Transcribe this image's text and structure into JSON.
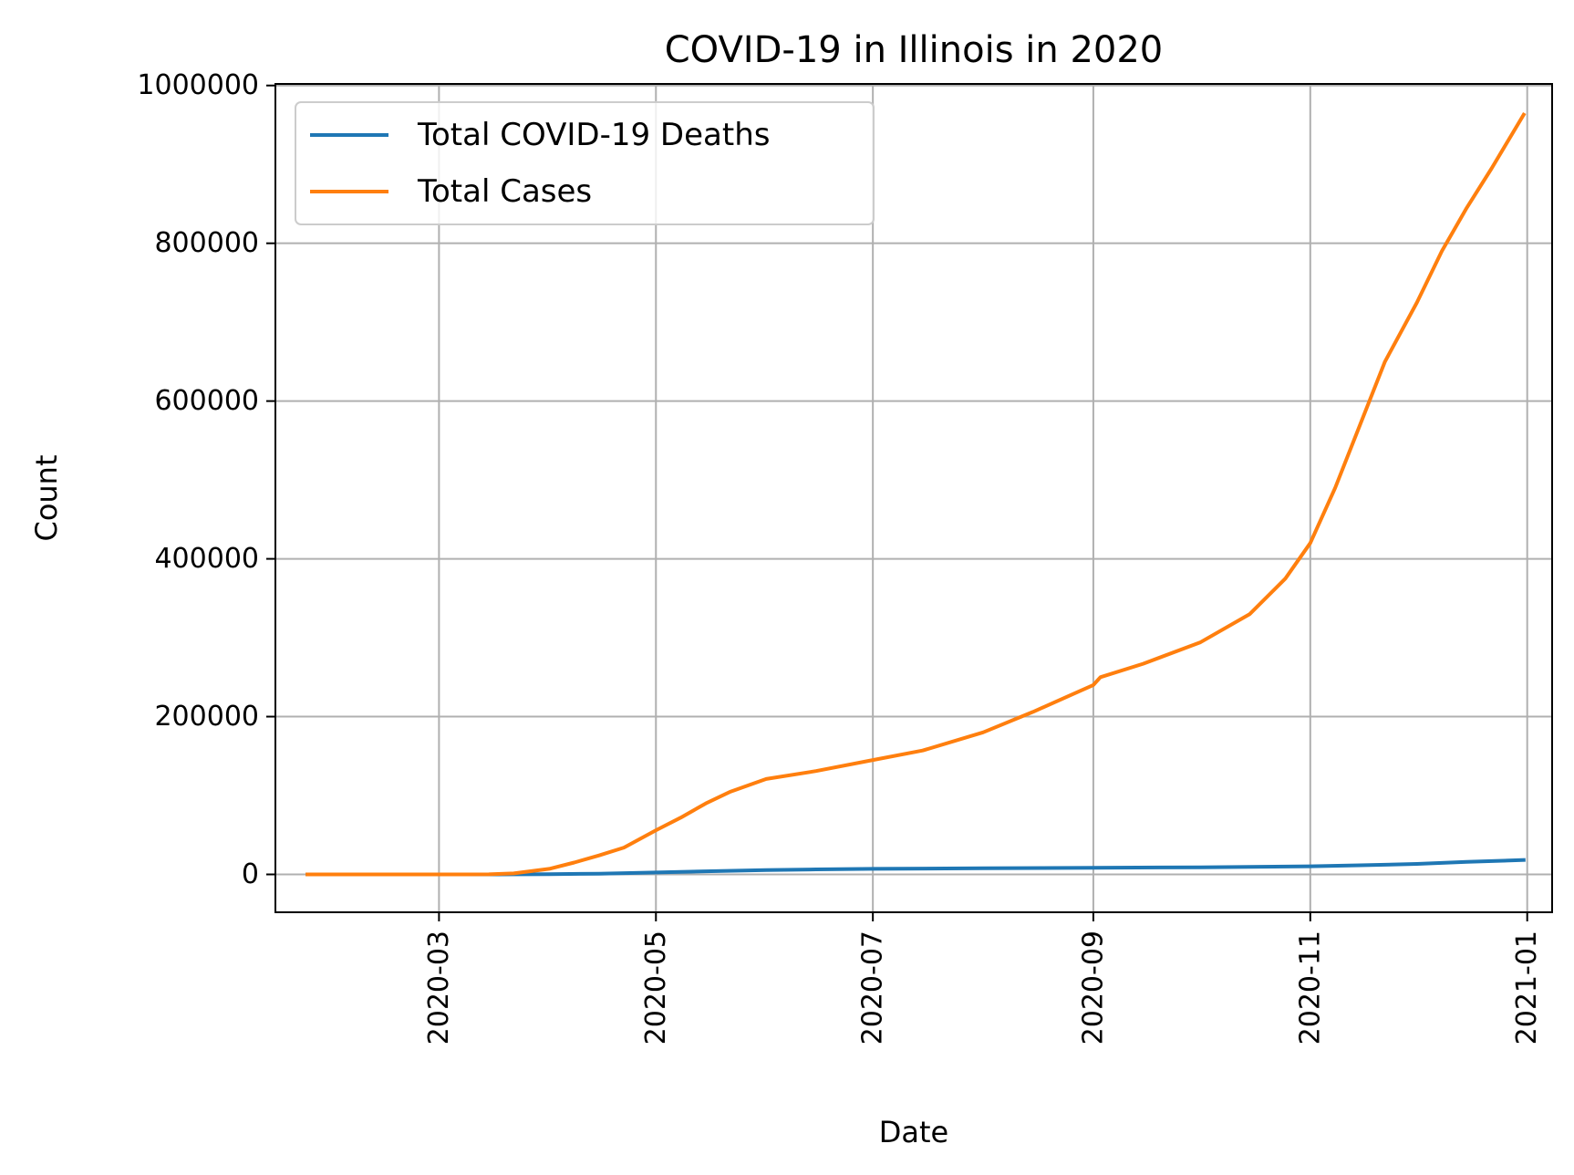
{
  "chart_data": {
    "type": "line",
    "title": "COVID-19 in Illinois in 2020",
    "xlabel": "Date",
    "ylabel": "Count",
    "x_axis": {
      "type": "date",
      "range": [
        "2020-01-15",
        "2021-01-08"
      ],
      "ticks": [
        "2020-03",
        "2020-05",
        "2020-07",
        "2020-09",
        "2020-11",
        "2021-01"
      ],
      "tick_dates": [
        "2020-03-01",
        "2020-05-01",
        "2020-07-01",
        "2020-09-01",
        "2020-11-01",
        "2021-01-01"
      ],
      "tick_label_rotation": 90
    },
    "y_axis": {
      "range": [
        -48000,
        1002000
      ],
      "ticks": [
        0,
        200000,
        400000,
        600000,
        800000,
        1000000
      ],
      "tick_labels": [
        "0",
        "200000",
        "400000",
        "600000",
        "800000",
        "1000000"
      ]
    },
    "grid": true,
    "legend": {
      "position": "top-left"
    },
    "series": [
      {
        "name": "Total COVID-19 Deaths",
        "color": "#1f77b4",
        "points": [
          [
            "2020-01-24",
            0
          ],
          [
            "2020-03-17",
            1
          ],
          [
            "2020-04-01",
            300
          ],
          [
            "2020-04-15",
            900
          ],
          [
            "2020-05-01",
            2400
          ],
          [
            "2020-05-15",
            3900
          ],
          [
            "2020-06-01",
            5400
          ],
          [
            "2020-06-15",
            6300
          ],
          [
            "2020-07-01",
            7000
          ],
          [
            "2020-08-01",
            7700
          ],
          [
            "2020-09-01",
            8300
          ],
          [
            "2020-10-01",
            9000
          ],
          [
            "2020-11-01",
            10300
          ],
          [
            "2020-11-15",
            11500
          ],
          [
            "2020-12-01",
            13300
          ],
          [
            "2020-12-15",
            15800
          ],
          [
            "2020-12-31",
            18300
          ]
        ]
      },
      {
        "name": "Total Cases",
        "color": "#ff7f0e",
        "points": [
          [
            "2020-01-24",
            0
          ],
          [
            "2020-03-01",
            0
          ],
          [
            "2020-03-15",
            100
          ],
          [
            "2020-03-22",
            1300
          ],
          [
            "2020-04-01",
            7000
          ],
          [
            "2020-04-08",
            15000
          ],
          [
            "2020-04-15",
            24000
          ],
          [
            "2020-04-22",
            34000
          ],
          [
            "2020-05-01",
            56000
          ],
          [
            "2020-05-08",
            72000
          ],
          [
            "2020-05-15",
            90000
          ],
          [
            "2020-05-22",
            105000
          ],
          [
            "2020-06-01",
            121000
          ],
          [
            "2020-06-15",
            131000
          ],
          [
            "2020-07-01",
            145000
          ],
          [
            "2020-07-15",
            157000
          ],
          [
            "2020-08-01",
            180000
          ],
          [
            "2020-08-15",
            206000
          ],
          [
            "2020-09-01",
            240000
          ],
          [
            "2020-09-03",
            250000
          ],
          [
            "2020-09-15",
            267000
          ],
          [
            "2020-10-01",
            294000
          ],
          [
            "2020-10-15",
            330000
          ],
          [
            "2020-10-25",
            375000
          ],
          [
            "2020-11-01",
            420000
          ],
          [
            "2020-11-08",
            490000
          ],
          [
            "2020-11-15",
            570000
          ],
          [
            "2020-11-22",
            650000
          ],
          [
            "2020-12-01",
            725000
          ],
          [
            "2020-12-08",
            790000
          ],
          [
            "2020-12-15",
            845000
          ],
          [
            "2020-12-22",
            895000
          ],
          [
            "2020-12-31",
            963000
          ]
        ]
      }
    ]
  }
}
